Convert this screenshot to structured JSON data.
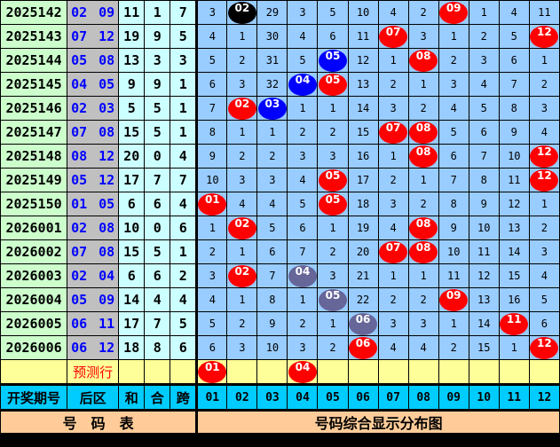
{
  "colors": {
    "red": "#ff0000",
    "blue": "#0000ff",
    "black": "#000000",
    "gray": "#666699"
  },
  "rows": [
    {
      "period": "2025142",
      "back": "02 09",
      "sum": "11",
      "he": "1",
      "span": "7",
      "cells": [
        "3",
        "02",
        "29",
        "3",
        "5",
        "10",
        "4",
        "2",
        "09",
        "1",
        "4",
        "11"
      ],
      "balls": {
        "1": "black",
        "8": "red"
      }
    },
    {
      "period": "2025143",
      "back": "07 12",
      "sum": "19",
      "he": "9",
      "span": "5",
      "cells": [
        "4",
        "1",
        "30",
        "4",
        "6",
        "11",
        "07",
        "3",
        "1",
        "2",
        "5",
        "12"
      ],
      "balls": {
        "6": "red",
        "11": "red"
      }
    },
    {
      "period": "2025144",
      "back": "05 08",
      "sum": "13",
      "he": "3",
      "span": "3",
      "cells": [
        "5",
        "2",
        "31",
        "5",
        "05",
        "12",
        "1",
        "08",
        "2",
        "3",
        "6",
        "1"
      ],
      "balls": {
        "4": "blue",
        "7": "red"
      }
    },
    {
      "period": "2025145",
      "back": "04 05",
      "sum": "9",
      "he": "9",
      "span": "1",
      "cells": [
        "6",
        "3",
        "32",
        "04",
        "05",
        "13",
        "2",
        "1",
        "3",
        "4",
        "7",
        "2"
      ],
      "balls": {
        "3": "blue",
        "4": "red"
      }
    },
    {
      "period": "2025146",
      "back": "02 03",
      "sum": "5",
      "he": "5",
      "span": "1",
      "cells": [
        "7",
        "02",
        "03",
        "1",
        "1",
        "14",
        "3",
        "2",
        "4",
        "5",
        "8",
        "3"
      ],
      "balls": {
        "1": "red",
        "2": "blue"
      }
    },
    {
      "period": "2025147",
      "back": "07 08",
      "sum": "15",
      "he": "5",
      "span": "1",
      "cells": [
        "8",
        "1",
        "1",
        "2",
        "2",
        "15",
        "07",
        "08",
        "5",
        "6",
        "9",
        "4"
      ],
      "balls": {
        "6": "red",
        "7": "red"
      }
    },
    {
      "period": "2025148",
      "back": "08 12",
      "sum": "20",
      "he": "0",
      "span": "4",
      "cells": [
        "9",
        "2",
        "2",
        "3",
        "3",
        "16",
        "1",
        "08",
        "6",
        "7",
        "10",
        "12"
      ],
      "balls": {
        "7": "red",
        "11": "red"
      }
    },
    {
      "period": "2025149",
      "back": "05 12",
      "sum": "17",
      "he": "7",
      "span": "7",
      "cells": [
        "10",
        "3",
        "3",
        "4",
        "05",
        "17",
        "2",
        "1",
        "7",
        "8",
        "11",
        "12"
      ],
      "balls": {
        "4": "red",
        "11": "red"
      }
    },
    {
      "period": "2025150",
      "back": "01 05",
      "sum": "6",
      "he": "6",
      "span": "4",
      "cells": [
        "01",
        "4",
        "4",
        "5",
        "05",
        "18",
        "3",
        "2",
        "8",
        "9",
        "12",
        "1"
      ],
      "balls": {
        "0": "red",
        "4": "red"
      }
    },
    {
      "period": "2026001",
      "back": "02 08",
      "sum": "10",
      "he": "0",
      "span": "6",
      "cells": [
        "1",
        "02",
        "5",
        "6",
        "1",
        "19",
        "4",
        "08",
        "9",
        "10",
        "13",
        "2"
      ],
      "balls": {
        "1": "red",
        "7": "red"
      }
    },
    {
      "period": "2026002",
      "back": "07 08",
      "sum": "15",
      "he": "5",
      "span": "1",
      "cells": [
        "2",
        "1",
        "6",
        "7",
        "2",
        "20",
        "07",
        "08",
        "10",
        "11",
        "14",
        "3"
      ],
      "balls": {
        "6": "red",
        "7": "red"
      }
    },
    {
      "period": "2026003",
      "back": "02 04",
      "sum": "6",
      "he": "6",
      "span": "2",
      "cells": [
        "3",
        "02",
        "7",
        "04",
        "3",
        "21",
        "1",
        "1",
        "11",
        "12",
        "15",
        "4"
      ],
      "balls": {
        "1": "red",
        "3": "gray"
      }
    },
    {
      "period": "2026004",
      "back": "05 09",
      "sum": "14",
      "he": "4",
      "span": "4",
      "cells": [
        "4",
        "1",
        "8",
        "1",
        "05",
        "22",
        "2",
        "2",
        "09",
        "13",
        "16",
        "5"
      ],
      "balls": {
        "4": "gray",
        "8": "red"
      }
    },
    {
      "period": "2026005",
      "back": "06 11",
      "sum": "17",
      "he": "7",
      "span": "5",
      "cells": [
        "5",
        "2",
        "9",
        "2",
        "1",
        "06",
        "3",
        "3",
        "1",
        "14",
        "11",
        "6"
      ],
      "balls": {
        "5": "gray",
        "10": "red"
      }
    },
    {
      "period": "2026006",
      "back": "06 12",
      "sum": "18",
      "he": "8",
      "span": "6",
      "cells": [
        "6",
        "3",
        "10",
        "3",
        "2",
        "06",
        "4",
        "4",
        "2",
        "15",
        "1",
        "12"
      ],
      "balls": {
        "5": "red",
        "11": "red"
      }
    }
  ],
  "predict": {
    "label": "预测行",
    "cells": [
      "01",
      "",
      "",
      "04",
      "",
      "",
      "",
      "",
      "",
      "",
      "",
      ""
    ],
    "balls": {
      "0": "red",
      "3": "red"
    }
  },
  "header": {
    "period": "开奖期号",
    "back": "后区",
    "sum": "和",
    "he": "合",
    "span": "跨",
    "nums": [
      "01",
      "02",
      "03",
      "04",
      "05",
      "06",
      "07",
      "08",
      "09",
      "10",
      "11",
      "12"
    ]
  },
  "footer": {
    "left": "号　码　表",
    "right": "号码综合显示分布图"
  }
}
